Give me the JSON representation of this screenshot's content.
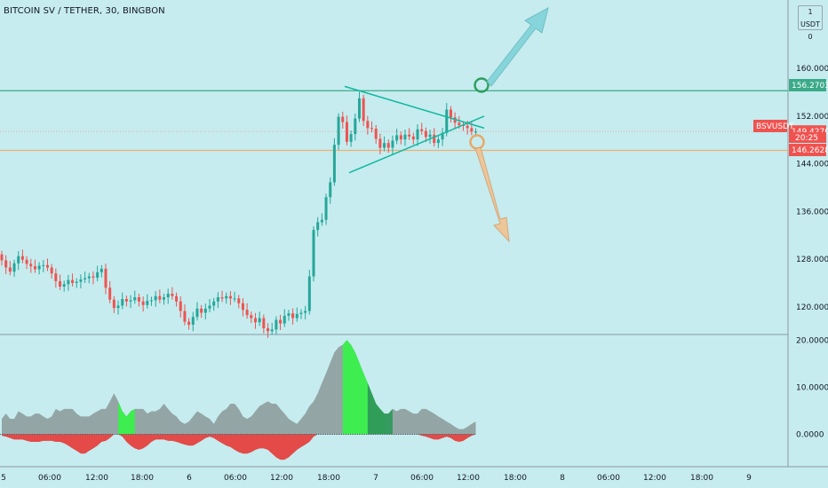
{
  "header": {
    "title": "BITCOIN SV / TETHER, 30, BINGBON"
  },
  "axis_badge": {
    "unit": "USDT",
    "top_left": "1",
    "top_right": "0"
  },
  "colors": {
    "background": "#c6ecef",
    "up": "#26a69a",
    "down": "#ef5350",
    "resistance_line": "#3aaa88",
    "support_line": "#f0b070",
    "triangle": "#10b8a0",
    "arrow_up": "#7fd3d8",
    "arrow_down": "#f2c290",
    "osc_green": "#39f04a",
    "osc_dark_green": "#2f9a5a",
    "osc_red": "#e53935",
    "osc_dark_red": "#8a2a2a",
    "osc_gray": "#8a9a98"
  },
  "chart_data": [
    {
      "type": "candlestick",
      "symbol": "BSVUSDT",
      "title": "BITCOIN SV / TETHER, 30, BINGBON",
      "ylim": [
        115.5,
        171.5
      ],
      "y_ticks": [
        "120.0000",
        "128.0000",
        "136.0000",
        "144.0000",
        "152.0000",
        "160.0000"
      ],
      "x_ticks": [
        "5",
        "06:00",
        "12:00",
        "18:00",
        "6",
        "06:00",
        "12:00",
        "18:00",
        "7",
        "06:00",
        "12:00",
        "18:00",
        "8",
        "06:00",
        "12:00",
        "18:00",
        "9"
      ],
      "price_tags": [
        {
          "label": "",
          "value": "156.2703",
          "color": "#3aaa88"
        },
        {
          "label": "BSVUSDT",
          "value": "149.4270",
          "sub": "20:25",
          "color": "#ef5350"
        },
        {
          "label": "",
          "value": "146.2628",
          "color": "#ef5350"
        }
      ],
      "horizontal_lines": [
        {
          "name": "resistance",
          "value": 156.27
        },
        {
          "name": "support",
          "value": 146.26
        }
      ],
      "triangle": {
        "upper": [
          [
            388,
            157
          ],
          [
            545,
            150
          ]
        ],
        "lower": [
          [
            393,
            142.5
          ],
          [
            545,
            152
          ]
        ]
      },
      "candles": {
        "open": [
          128.8,
          127.8,
          126.6,
          125.9,
          127.3,
          128.5,
          127.9,
          127.2,
          126.8,
          126.3,
          126.9,
          127.0,
          126.6,
          125.6,
          124.3,
          123.4,
          123.8,
          124.5,
          124.0,
          124.2,
          124.6,
          124.8,
          125.1,
          124.9,
          125.8,
          126.4,
          123.2,
          121.2,
          119.8,
          120.2,
          121.3,
          120.9,
          121.1,
          121.6,
          120.9,
          120.3,
          121.0,
          121.1,
          121.8,
          121.2,
          121.6,
          122.2,
          121.8,
          120.9,
          119.3,
          117.5,
          117.0,
          118.3,
          119.7,
          119.0,
          119.7,
          120.2,
          120.9,
          121.6,
          121.4,
          121.8,
          121.4,
          121.4,
          120.6,
          119.5,
          118.6,
          118.1,
          117.4,
          118.1,
          116.4,
          115.9,
          116.2,
          117.8,
          117.2,
          118.5,
          118.9,
          118.1,
          118.8,
          119.0,
          119.3,
          125.1,
          132.9,
          134.2,
          134.6,
          138.4,
          140.9,
          147.2,
          151.9,
          151.0,
          147.7,
          149.0,
          151.6,
          155.0,
          151.2,
          150.0,
          149.9,
          148.2,
          146.7,
          147.5,
          146.7,
          147.9,
          148.8,
          148.1,
          148.9,
          148.6,
          148.1,
          149.8,
          149.5,
          148.5,
          148.9,
          147.5,
          148.1,
          149.2,
          153.1,
          151.8,
          150.9,
          150.5,
          150.4,
          150.0,
          149.4
        ],
        "close": [
          127.8,
          126.6,
          125.9,
          127.3,
          128.5,
          127.9,
          127.2,
          126.8,
          126.3,
          126.9,
          127.0,
          126.6,
          125.6,
          124.3,
          123.4,
          123.8,
          124.5,
          124.0,
          124.2,
          124.6,
          124.8,
          125.1,
          124.9,
          125.8,
          126.4,
          123.2,
          121.2,
          119.8,
          120.2,
          121.3,
          120.9,
          121.1,
          121.6,
          120.9,
          120.3,
          121.0,
          121.1,
          121.8,
          121.2,
          121.6,
          122.2,
          121.8,
          120.9,
          119.3,
          117.5,
          117.0,
          118.3,
          119.7,
          119.0,
          119.7,
          120.2,
          120.9,
          121.6,
          121.4,
          121.8,
          121.4,
          121.4,
          120.6,
          119.5,
          118.6,
          118.1,
          117.4,
          118.1,
          116.4,
          115.9,
          116.2,
          117.8,
          117.2,
          118.5,
          118.9,
          118.1,
          118.8,
          119.0,
          119.3,
          125.1,
          132.9,
          134.2,
          134.6,
          138.4,
          140.9,
          147.2,
          151.9,
          151.0,
          147.7,
          149.0,
          151.6,
          155.0,
          151.2,
          150.0,
          149.9,
          148.2,
          146.7,
          147.5,
          146.7,
          147.9,
          148.8,
          148.1,
          148.9,
          148.6,
          148.1,
          149.8,
          149.5,
          148.5,
          148.9,
          147.5,
          148.1,
          149.2,
          153.1,
          151.8,
          150.9,
          150.5,
          150.4,
          150.0,
          149.4,
          149.4
        ]
      }
    },
    {
      "type": "area",
      "name": "oscillator",
      "ylim": [
        -6.5,
        21.0
      ],
      "y_ticks": [
        "0.0000",
        "10.0000",
        "20.0000"
      ],
      "gray_upper": [
        3.3,
        4.4,
        3.3,
        3.3,
        4.9,
        4.4,
        3.8,
        3.8,
        4.4,
        4.4,
        3.8,
        3.3,
        3.8,
        5.4,
        4.9,
        5.4,
        5.4,
        5.4,
        4.4,
        3.8,
        3.8,
        3.8,
        4.4,
        4.9,
        5.4,
        5.4,
        7.0,
        8.7,
        7.0,
        4.9,
        3.8,
        4.9,
        5.4,
        5.4,
        5.4,
        4.4,
        4.9,
        4.9,
        5.4,
        6.5,
        5.4,
        4.4,
        3.8,
        2.7,
        2.2,
        2.7,
        3.8,
        4.9,
        4.4,
        3.8,
        3.3,
        2.2,
        3.8,
        4.9,
        5.4,
        6.5,
        6.5,
        5.4,
        3.8,
        3.3,
        3.8,
        4.9,
        6.0,
        6.5,
        7.0,
        6.5,
        6.5,
        5.4,
        4.4,
        3.3,
        2.7,
        2.2,
        3.3,
        4.4,
        6.0,
        7.0,
        8.7,
        10.9,
        13.0,
        15.2,
        17.4,
        18.5,
        19.0,
        20.0,
        19.0,
        17.4,
        15.2,
        13.0,
        10.9,
        8.7,
        6.5,
        5.4,
        4.4,
        4.4,
        5.4,
        4.9,
        5.4,
        5.4,
        4.9,
        4.4,
        4.4,
        5.4,
        5.4,
        4.9,
        4.4,
        3.8,
        3.3,
        2.7,
        2.2,
        1.6,
        1.1,
        1.1,
        1.6,
        2.2,
        2.7
      ],
      "red_lower": [
        -0.3,
        -0.5,
        -0.8,
        -1.1,
        -1.1,
        -1.1,
        -1.4,
        -1.6,
        -1.6,
        -1.6,
        -1.4,
        -1.4,
        -1.4,
        -1.6,
        -1.6,
        -1.9,
        -2.4,
        -3.0,
        -3.5,
        -4.1,
        -4.1,
        -3.5,
        -3.0,
        -2.4,
        -1.6,
        -1.4,
        -0.8,
        0.0,
        0.0,
        -0.5,
        -1.6,
        -2.4,
        -3.0,
        -3.3,
        -3.0,
        -2.4,
        -1.6,
        -1.1,
        -1.1,
        -1.1,
        -1.4,
        -1.4,
        -1.6,
        -1.9,
        -2.2,
        -2.4,
        -2.4,
        -1.9,
        -1.4,
        -0.8,
        -0.5,
        -0.8,
        -1.4,
        -1.9,
        -2.4,
        -2.7,
        -3.3,
        -3.8,
        -4.1,
        -4.1,
        -3.8,
        -3.3,
        -3.0,
        -3.0,
        -3.3,
        -4.1,
        -4.9,
        -5.4,
        -5.4,
        -4.9,
        -4.1,
        -3.3,
        -2.7,
        -2.2,
        -1.6,
        -0.5,
        0.0,
        0.0,
        0.0,
        0.0,
        0.0,
        0.0,
        0.0,
        0.0,
        0.0,
        0.0,
        0.0,
        0.0,
        0.0,
        0.0,
        0.0,
        0.0,
        0.0,
        0.0,
        0.0,
        0.0,
        0.0,
        0.0,
        0.0,
        0.0,
        0.0,
        -0.3,
        -0.5,
        -0.8,
        -1.1,
        -1.1,
        -0.8,
        -0.5,
        -0.8,
        -1.4,
        -1.6,
        -1.4,
        -0.8,
        -0.3,
        0.0
      ],
      "green_segments": [
        {
          "from": 28,
          "to": 32,
          "peak": 8.7
        },
        {
          "from": 82,
          "to": 92,
          "peak": 19.5
        }
      ]
    }
  ]
}
